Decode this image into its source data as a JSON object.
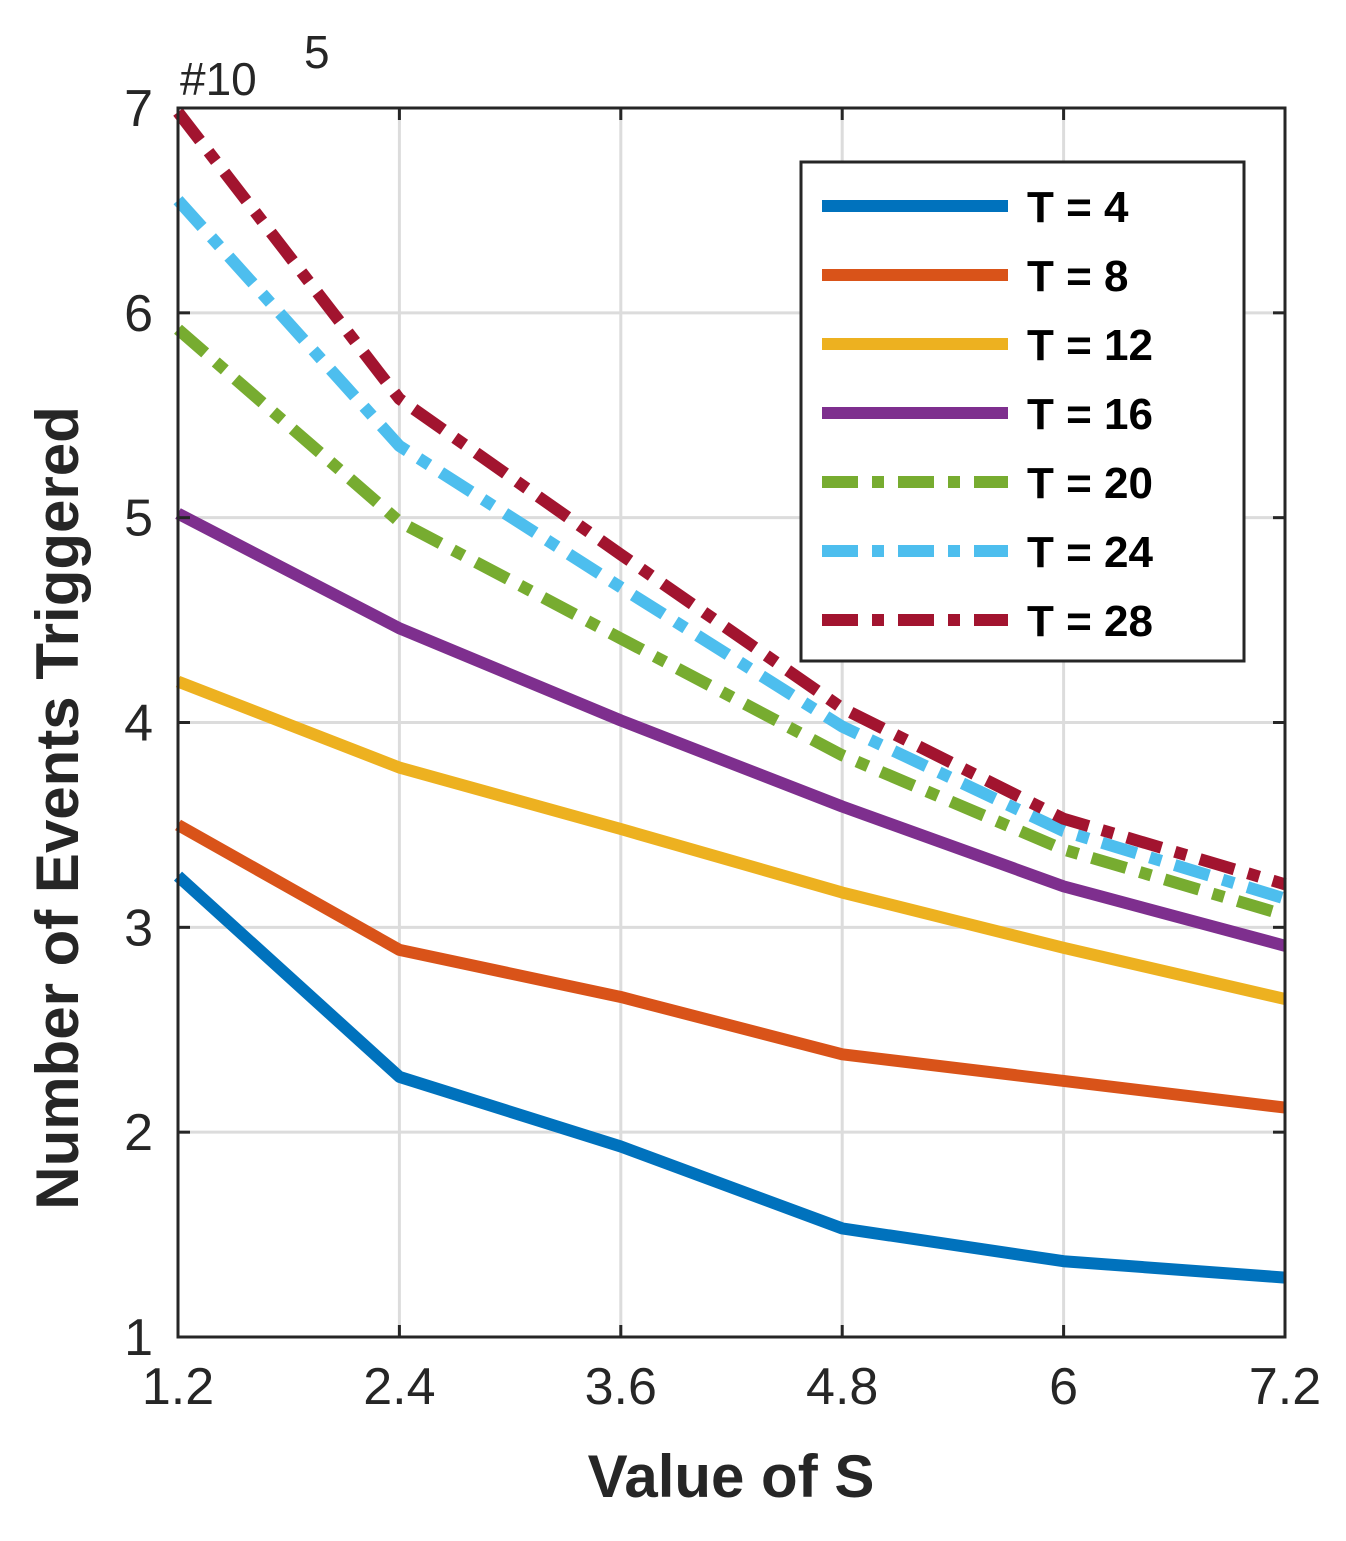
{
  "chart_data": {
    "type": "line",
    "title": "",
    "xlabel": "Value of S",
    "ylabel": "Number of Events Triggered",
    "y_exponent_label": "#10",
    "y_exponent_power": "5",
    "xlim": [
      1.2,
      7.2
    ],
    "ylim": [
      1,
      7
    ],
    "grid": true,
    "legend_position": "top-right",
    "x": [
      1.2,
      2.4,
      3.6,
      4.8,
      6,
      7.2
    ],
    "x_tick_labels": [
      "1.2",
      "2.4",
      "3.6",
      "4.8",
      "6",
      "7.2"
    ],
    "y_ticks": [
      1,
      2,
      3,
      4,
      5,
      6,
      7
    ],
    "y_tick_labels": [
      "1",
      "2",
      "3",
      "4",
      "5",
      "6",
      "7"
    ],
    "series": [
      {
        "name": "T = 4",
        "color": "#0072BD",
        "style": "solid",
        "values": [
          3.25,
          2.27,
          1.93,
          1.53,
          1.37,
          1.29
        ]
      },
      {
        "name": "T = 8",
        "color": "#D95319",
        "style": "solid",
        "values": [
          3.5,
          2.89,
          2.66,
          2.38,
          2.25,
          2.12
        ]
      },
      {
        "name": "T = 12",
        "color": "#EDB120",
        "style": "solid",
        "values": [
          4.2,
          3.78,
          3.48,
          3.17,
          2.9,
          2.65
        ]
      },
      {
        "name": "T = 16",
        "color": "#7E2F8E",
        "style": "solid",
        "values": [
          5.02,
          4.46,
          4.01,
          3.59,
          3.2,
          2.91
        ]
      },
      {
        "name": "T = 20",
        "color": "#77AC30",
        "style": "dashdot",
        "values": [
          5.92,
          4.98,
          4.41,
          3.84,
          3.38,
          3.06
        ]
      },
      {
        "name": "T = 24",
        "color": "#4DBEEE",
        "style": "dashdot",
        "values": [
          6.55,
          5.35,
          4.66,
          3.98,
          3.47,
          3.14
        ]
      },
      {
        "name": "T = 28",
        "color": "#A2142F",
        "style": "dashdot",
        "values": [
          6.98,
          5.58,
          4.82,
          4.07,
          3.53,
          3.21
        ]
      }
    ]
  }
}
